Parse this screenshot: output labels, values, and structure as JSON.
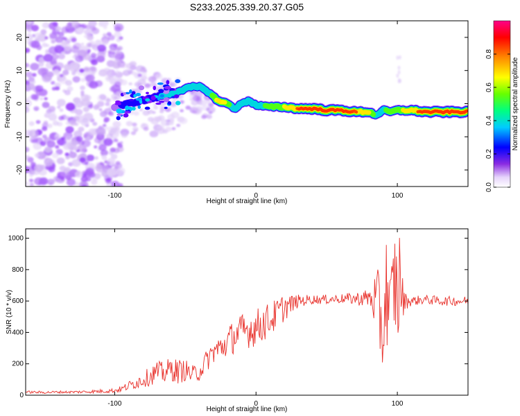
{
  "figure_title": "S233.2025.339.20.37.G05",
  "chart_data": [
    {
      "type": "heatmap",
      "title": "S233.2025.339.20.37.G05",
      "xlabel": "Height of straight line (km)",
      "ylabel": "Frequency (Hz)",
      "xlim": [
        -163,
        150
      ],
      "ylim": [
        -25,
        25
      ],
      "xticks": [
        -100,
        0,
        100
      ],
      "yticks": [
        -20,
        -10,
        0,
        10,
        20
      ],
      "colorbar": {
        "label": "Normalized spectral amplitude",
        "range": [
          0,
          1
        ],
        "ticks": [
          0.0,
          0.2,
          0.4,
          0.6,
          0.8
        ],
        "colormap": [
          "#ffffff",
          "#d3b7f5",
          "#7700ff",
          "#0000ff",
          "#00ccff",
          "#00ff66",
          "#66ff00",
          "#ffff00",
          "#ff8800",
          "#ff0000",
          "#ff0088"
        ]
      },
      "ridge": {
        "x": [
          -100,
          -90,
          -80,
          -70,
          -60,
          -50,
          -45,
          -40,
          -35,
          -30,
          -25,
          -20,
          -15,
          -10,
          -5,
          0,
          10,
          20,
          30,
          40,
          50,
          60,
          70,
          80,
          85,
          90,
          95,
          100,
          110,
          120,
          130,
          140,
          150
        ],
        "frequency": [
          -1,
          0,
          1,
          2,
          3,
          4.5,
          5,
          5,
          4,
          2,
          0.5,
          0,
          -1.5,
          0,
          1,
          -0.5,
          -1,
          -1,
          -1.5,
          -1.5,
          -2,
          -2,
          -2.5,
          -2.5,
          -3.5,
          -2,
          -2.5,
          -2,
          -2,
          -2.5,
          -2.5,
          -2.5,
          -2.5
        ],
        "amplitude": [
          0.25,
          0.3,
          0.35,
          0.4,
          0.45,
          0.5,
          0.55,
          0.55,
          0.5,
          0.6,
          0.8,
          0.6,
          0.45,
          0.5,
          0.55,
          0.5,
          0.6,
          0.7,
          0.85,
          0.95,
          0.95,
          0.9,
          0.85,
          0.75,
          0.4,
          0.55,
          0.6,
          0.65,
          0.8,
          0.9,
          0.95,
          0.95,
          0.95
        ]
      }
    },
    {
      "type": "line",
      "xlabel": "Height of straight line (km)",
      "ylabel": "SNR (10 * v/v)",
      "xlim": [
        -163,
        150
      ],
      "ylim": [
        0,
        1060
      ],
      "xticks": [
        -100,
        0,
        100
      ],
      "yticks": [
        0,
        200,
        400,
        600,
        800,
        1000
      ],
      "color": "#e8302a",
      "series": [
        {
          "x": [
            -163,
            -150,
            -140,
            -130,
            -120,
            -110,
            -100,
            -95,
            -90,
            -85,
            -80,
            -75,
            -70,
            -65,
            -60,
            -55,
            -50,
            -45,
            -40,
            -35,
            -30,
            -25,
            -20,
            -15,
            -10,
            -5,
            0,
            5,
            10,
            15,
            20,
            25,
            30,
            40,
            50,
            60,
            70,
            80,
            85,
            88,
            90,
            92,
            95,
            98,
            100,
            102,
            103,
            105,
            110,
            120,
            130,
            140,
            150
          ],
          "y": [
            20,
            18,
            20,
            20,
            22,
            25,
            30,
            40,
            60,
            80,
            100,
            120,
            150,
            140,
            170,
            150,
            160,
            130,
            150,
            220,
            280,
            300,
            340,
            380,
            400,
            420,
            430,
            460,
            480,
            520,
            560,
            580,
            600,
            610,
            610,
            615,
            615,
            620,
            600,
            500,
            400,
            700,
            500,
            750,
            600,
            800,
            620,
            600,
            600,
            610,
            600,
            600,
            600
          ],
          "spread": [
            8,
            8,
            8,
            8,
            10,
            12,
            15,
            20,
            30,
            40,
            50,
            60,
            70,
            70,
            80,
            80,
            70,
            60,
            60,
            70,
            80,
            90,
            100,
            110,
            120,
            120,
            120,
            120,
            110,
            100,
            90,
            60,
            40,
            30,
            30,
            30,
            40,
            60,
            200,
            300,
            350,
            350,
            300,
            350,
            400,
            300,
            200,
            60,
            30,
            30,
            30,
            30,
            30
          ]
        }
      ]
    }
  ]
}
